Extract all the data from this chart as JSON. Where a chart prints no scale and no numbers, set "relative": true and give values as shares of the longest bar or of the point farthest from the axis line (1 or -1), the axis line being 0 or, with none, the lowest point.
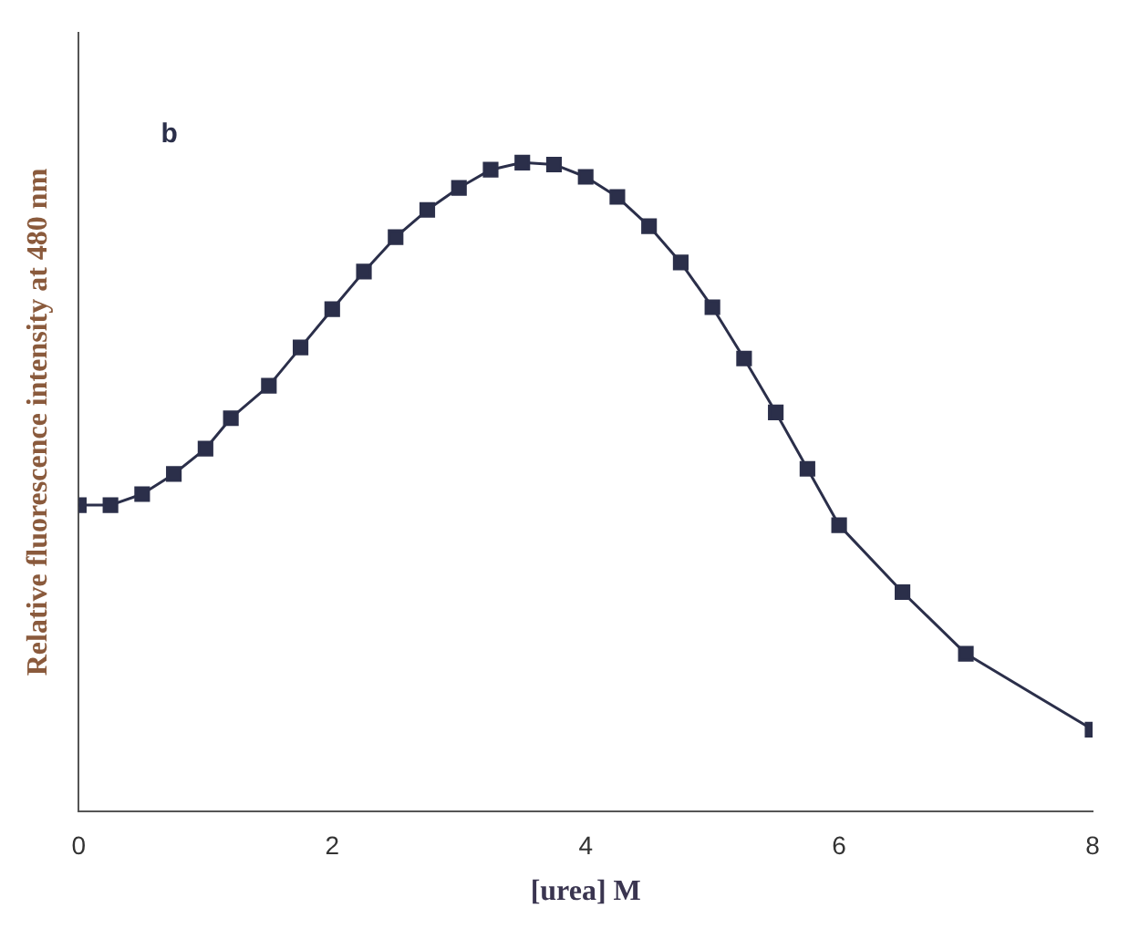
{
  "chart_data": {
    "type": "line",
    "relative": true,
    "xlabel": "[urea] M",
    "ylabel": "Relative fluorescence intensity at 480 nm",
    "annotations": [
      "b"
    ],
    "x": [
      0,
      0.25,
      0.5,
      0.75,
      1,
      1.2,
      1.5,
      1.75,
      2,
      2.25,
      2.5,
      2.75,
      3,
      3.25,
      3.5,
      3.75,
      4,
      4.25,
      4.5,
      4.75,
      5,
      5.25,
      5.5,
      5.75,
      6,
      6.5,
      7,
      8
    ],
    "series": [
      {
        "color": "#2b2f4a",
        "values": [
          0.472,
          0.472,
          0.489,
          0.52,
          0.559,
          0.606,
          0.656,
          0.715,
          0.774,
          0.832,
          0.885,
          0.927,
          0.961,
          0.989,
          1,
          0.997,
          0.978,
          0.947,
          0.902,
          0.846,
          0.777,
          0.698,
          0.615,
          0.528,
          0.441,
          0.338,
          0.243,
          0.126
        ]
      }
    ],
    "xlim": [
      0,
      8
    ],
    "xticks": [
      0,
      2,
      4,
      6,
      8
    ],
    "marker": "square",
    "line_style": "solid",
    "grid": false,
    "legend": false
  }
}
